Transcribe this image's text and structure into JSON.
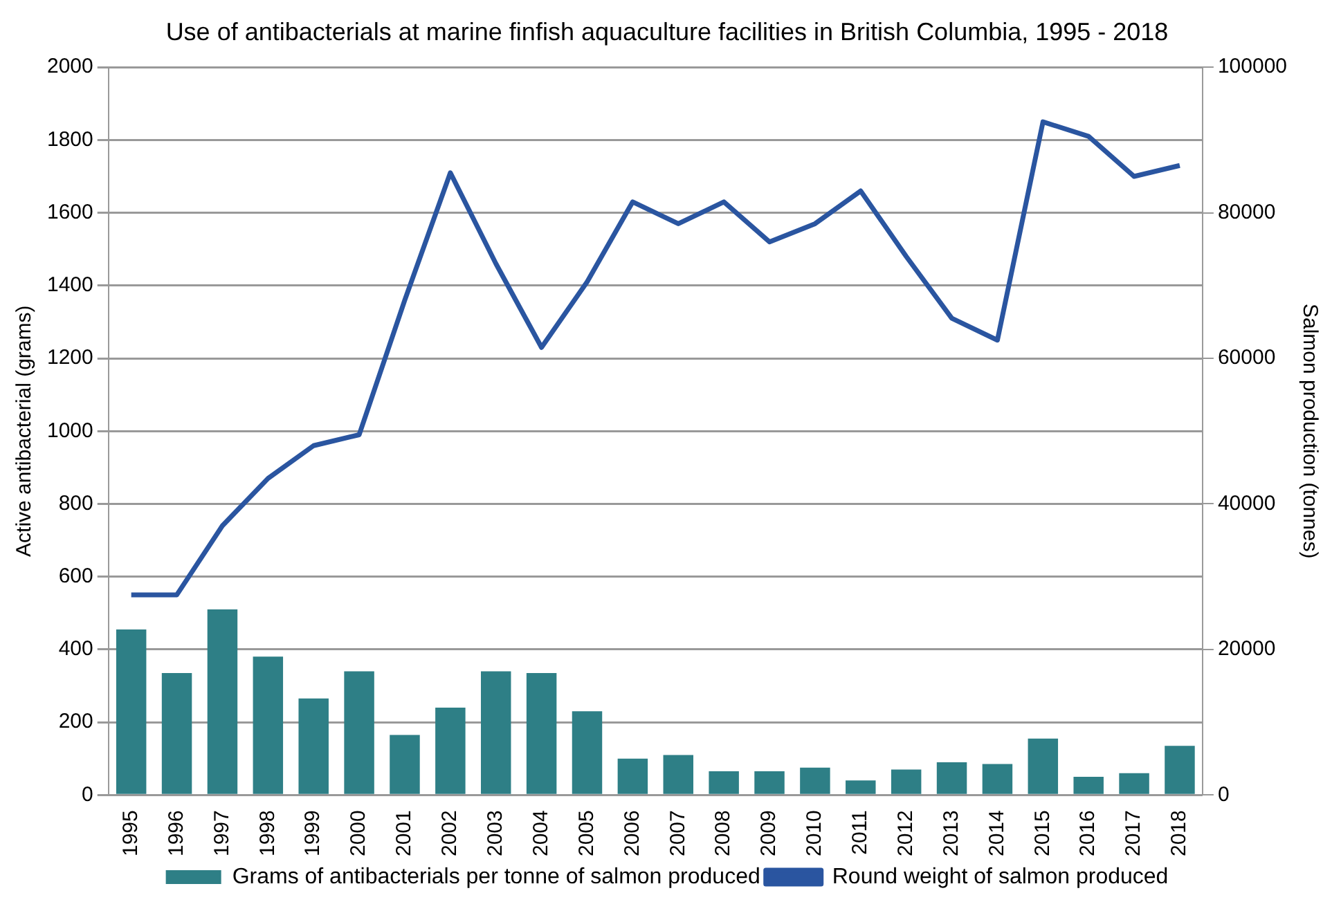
{
  "chart_data": {
    "type": "bar",
    "title": "Use of antibacterials at marine finfish aquaculture facilities in British Columbia, 1995 - 2018",
    "ylabel": "Active antibacterial (grams)",
    "y2label": "Salmon production (tonnes)",
    "categories": [
      "1995",
      "1996",
      "1997",
      "1998",
      "1999",
      "2000",
      "2001",
      "2002",
      "2003",
      "2004",
      "2005",
      "2006",
      "2007",
      "2008",
      "2009",
      "2010",
      "2011",
      "2012",
      "2013",
      "2014",
      "2015",
      "2016",
      "2017",
      "2018"
    ],
    "series": [
      {
        "name": "Grams of antibacterials per tonne of salmon produced",
        "color": "#2e7f86",
        "values": [
          455,
          335,
          510,
          380,
          265,
          340,
          165,
          240,
          340,
          335,
          230,
          100,
          110,
          65,
          65,
          75,
          40,
          70,
          90,
          85,
          155,
          50,
          60,
          135
        ]
      },
      {
        "name": "Round weight of salmon produced",
        "type": "line",
        "axis": "y2",
        "color": "#2a55a0",
        "marker": "none",
        "values": [
          27500,
          27500,
          37000,
          43500,
          48000,
          49500,
          68000,
          85500,
          73000,
          61500,
          70500,
          81500,
          78500,
          81500,
          76000,
          78500,
          83000,
          74000,
          65500,
          62500,
          92500,
          90500,
          85000,
          86500
        ]
      }
    ],
    "ylim": [
      0,
      2000
    ],
    "yticks": [
      0,
      200,
      400,
      600,
      800,
      1000,
      1200,
      1400,
      1600,
      1800,
      2000
    ],
    "y2lim": [
      0,
      100000
    ],
    "y2ticks": [
      0,
      20000,
      40000,
      60000,
      80000,
      100000
    ],
    "grid": "y",
    "legend": "bottom"
  }
}
